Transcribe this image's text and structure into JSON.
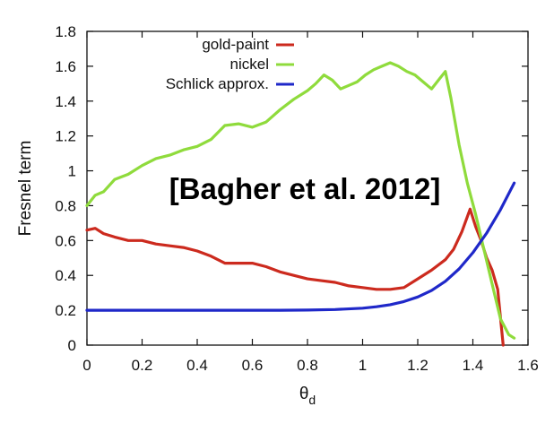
{
  "chart_data": {
    "type": "line",
    "title": "",
    "xlabel": "θd",
    "xlabel_main": "θ",
    "xlabel_sub": "d",
    "ylabel": "Fresnel term",
    "xlim": [
      0,
      1.6
    ],
    "ylim": [
      0,
      1.8
    ],
    "x_ticks": [
      "0",
      "0.2",
      "0.4",
      "0.6",
      "0.8",
      "1",
      "1.2",
      "1.4",
      "1.6"
    ],
    "y_ticks": [
      "0",
      "0.2",
      "0.4",
      "0.6",
      "0.8",
      "1",
      "1.2",
      "1.4",
      "1.6",
      "1.8"
    ],
    "grid": false,
    "legend_position": "top-left",
    "annotation": "[Bagher et al. 2012]",
    "series": [
      {
        "name": "gold-paint",
        "color": "#cc2a1e",
        "x": [
          0,
          0.03,
          0.06,
          0.1,
          0.15,
          0.2,
          0.25,
          0.3,
          0.35,
          0.4,
          0.45,
          0.5,
          0.55,
          0.6,
          0.65,
          0.7,
          0.75,
          0.8,
          0.85,
          0.9,
          0.95,
          1.0,
          1.05,
          1.1,
          1.15,
          1.2,
          1.25,
          1.3,
          1.33,
          1.36,
          1.39,
          1.41,
          1.43,
          1.45,
          1.47,
          1.49,
          1.51
        ],
        "y": [
          0.66,
          0.67,
          0.64,
          0.62,
          0.6,
          0.6,
          0.58,
          0.57,
          0.56,
          0.54,
          0.51,
          0.47,
          0.47,
          0.47,
          0.45,
          0.42,
          0.4,
          0.38,
          0.37,
          0.36,
          0.34,
          0.33,
          0.32,
          0.32,
          0.33,
          0.38,
          0.43,
          0.49,
          0.55,
          0.65,
          0.78,
          0.68,
          0.6,
          0.5,
          0.43,
          0.32,
          0.0
        ]
      },
      {
        "name": "nickel",
        "color": "#8fdb3c",
        "x": [
          0,
          0.03,
          0.06,
          0.1,
          0.15,
          0.2,
          0.25,
          0.3,
          0.35,
          0.4,
          0.45,
          0.5,
          0.55,
          0.6,
          0.65,
          0.7,
          0.75,
          0.8,
          0.83,
          0.86,
          0.89,
          0.92,
          0.95,
          0.98,
          1.01,
          1.04,
          1.07,
          1.1,
          1.13,
          1.16,
          1.19,
          1.22,
          1.25,
          1.28,
          1.3,
          1.32,
          1.35,
          1.38,
          1.41,
          1.44,
          1.47,
          1.5,
          1.53,
          1.55
        ],
        "y": [
          0.8,
          0.86,
          0.88,
          0.95,
          0.98,
          1.03,
          1.07,
          1.09,
          1.12,
          1.14,
          1.18,
          1.26,
          1.27,
          1.25,
          1.28,
          1.35,
          1.41,
          1.46,
          1.5,
          1.55,
          1.52,
          1.47,
          1.49,
          1.51,
          1.55,
          1.58,
          1.6,
          1.62,
          1.6,
          1.57,
          1.55,
          1.51,
          1.47,
          1.53,
          1.57,
          1.42,
          1.15,
          0.93,
          0.75,
          0.55,
          0.35,
          0.15,
          0.06,
          0.04
        ]
      },
      {
        "name": "Schlick approx.",
        "color": "#1f28c9",
        "x": [
          0,
          0.2,
          0.4,
          0.6,
          0.7,
          0.8,
          0.9,
          1.0,
          1.05,
          1.1,
          1.15,
          1.2,
          1.25,
          1.3,
          1.35,
          1.4,
          1.45,
          1.5,
          1.55
        ],
        "y": [
          0.2,
          0.2,
          0.2,
          0.2,
          0.2,
          0.201,
          0.204,
          0.212,
          0.22,
          0.232,
          0.25,
          0.276,
          0.313,
          0.366,
          0.437,
          0.53,
          0.643,
          0.777,
          0.93
        ]
      }
    ]
  }
}
